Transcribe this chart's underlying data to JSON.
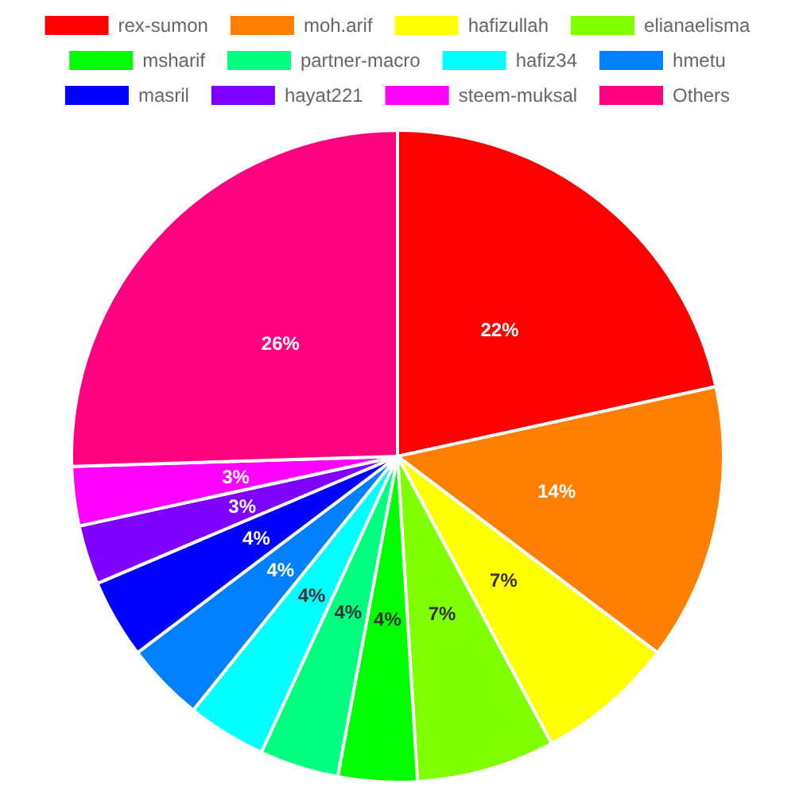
{
  "chart_data": {
    "type": "pie",
    "categories": [
      "rex-sumon",
      "moh.arif",
      "hafizullah",
      "elianaelisma",
      "msharif",
      "partner-macro",
      "hafiz34",
      "hmetu",
      "masril",
      "hayat221",
      "steem-muksal",
      "Others"
    ],
    "values": [
      22,
      14,
      7,
      7,
      4,
      4,
      4,
      4,
      4,
      3,
      3,
      26
    ],
    "colors": [
      "#ff0000",
      "#ff8000",
      "#ffff00",
      "#80ff00",
      "#00ff00",
      "#00ff80",
      "#00ffff",
      "#0080ff",
      "#0000ff",
      "#8000ff",
      "#ff00ff",
      "#ff0080"
    ],
    "value_labels": [
      "22%",
      "14%",
      "7%",
      "7%",
      "4%",
      "4%",
      "4%",
      "4%",
      "4%",
      "3%",
      "3%",
      "26%"
    ],
    "legend": "top"
  }
}
